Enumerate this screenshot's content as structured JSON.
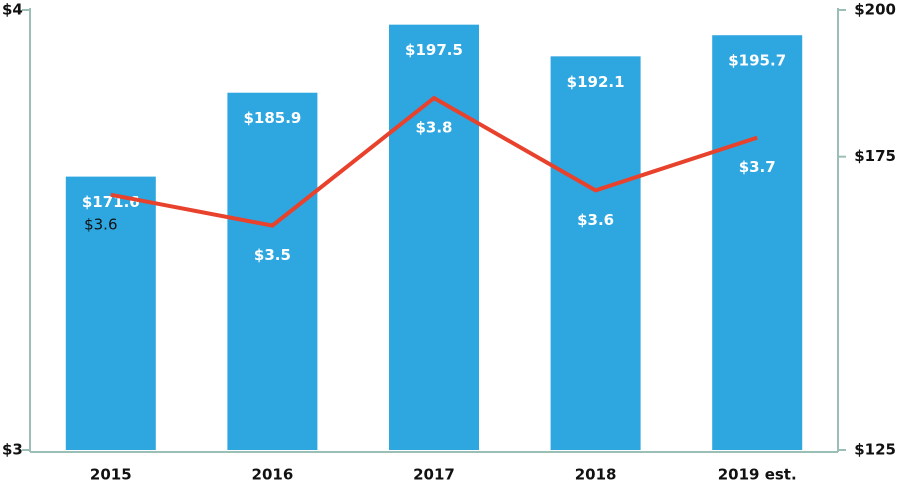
{
  "chart_data": {
    "type": "bar-line",
    "categories": [
      "2015",
      "2016",
      "2017",
      "2018",
      "2019 est."
    ],
    "series": [
      {
        "type": "bar",
        "axis": "y2",
        "color": "#2ea6e0",
        "values": [
          171.6,
          185.9,
          197.5,
          192.1,
          195.7
        ],
        "value_labels": [
          "$171.6",
          "$185.9",
          "$197.5",
          "$192.1",
          "$195.7"
        ]
      },
      {
        "type": "line",
        "axis": "y",
        "color": "#e8412c",
        "values": [
          3.58,
          3.51,
          3.8,
          3.59,
          3.71
        ],
        "value_labels": [
          "$3.6",
          "$3.5",
          "$3.8",
          "$3.6",
          "$3.7"
        ]
      }
    ],
    "ylim": [
      3,
      4
    ],
    "yticks": [
      {
        "value": 3,
        "label": "$3"
      },
      {
        "value": 4,
        "label": "$4"
      }
    ],
    "y2lim": [
      125,
      200
    ],
    "y2ticks": [
      {
        "value": 125,
        "label": "$125"
      },
      {
        "value": 175,
        "label": "$175"
      },
      {
        "value": 200,
        "label": "$200"
      }
    ]
  }
}
